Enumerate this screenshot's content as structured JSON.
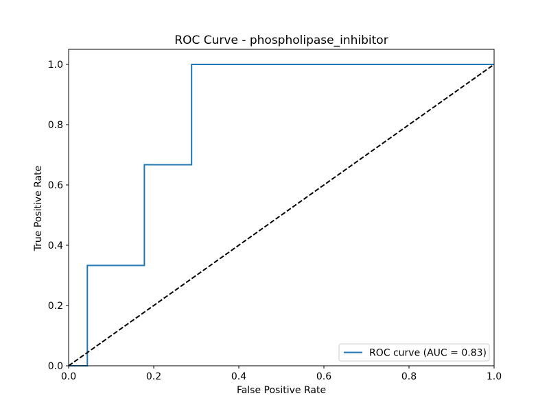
{
  "chart_data": {
    "type": "line",
    "title": "ROC Curve - phospholipase_inhibitor",
    "xlabel": "False Positive Rate",
    "ylabel": "True Positive Rate",
    "xlim": [
      0.0,
      1.0
    ],
    "ylim": [
      0.0,
      1.05
    ],
    "grid": false,
    "legend_position": "lower-right",
    "x_ticks": [
      "0.0",
      "0.2",
      "0.4",
      "0.6",
      "0.8",
      "1.0"
    ],
    "y_ticks": [
      "0.0",
      "0.2",
      "0.4",
      "0.6",
      "0.8",
      "1.0"
    ],
    "series": [
      {
        "name": "ROC curve (AUC = 0.83)",
        "color": "#1f77b4",
        "style": "solid",
        "x": [
          0.0,
          0.044,
          0.044,
          0.178,
          0.178,
          0.289,
          0.289,
          1.0
        ],
        "y": [
          0.0,
          0.0,
          0.333,
          0.333,
          0.667,
          0.667,
          1.0,
          1.0
        ]
      },
      {
        "color": "#000000",
        "style": "dashed",
        "x": [
          0.0,
          1.0
        ],
        "y": [
          0.0,
          1.0
        ]
      }
    ]
  }
}
